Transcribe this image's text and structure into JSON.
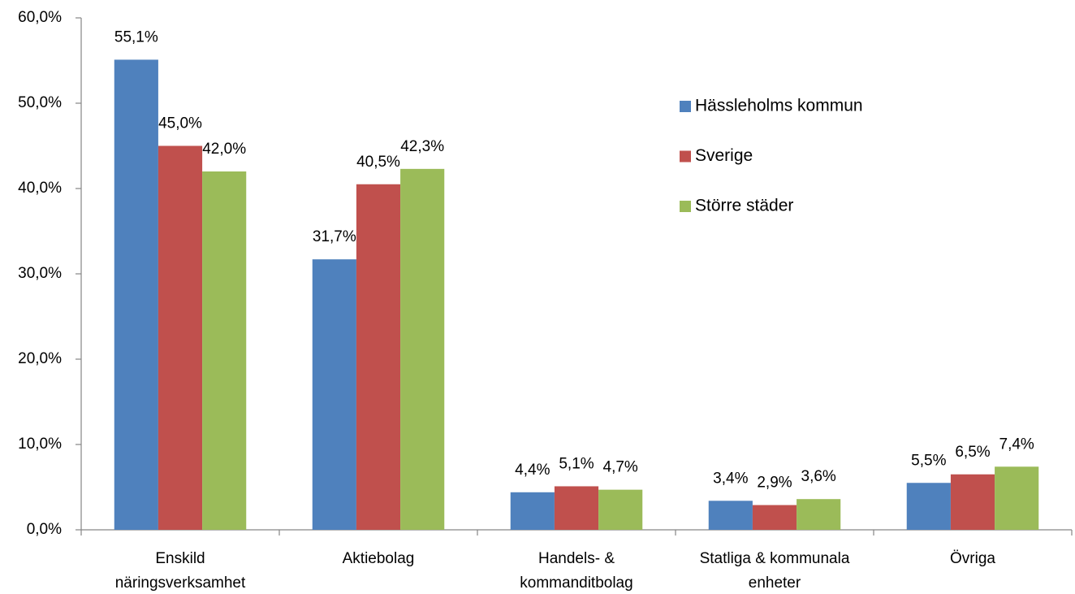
{
  "chart_data": {
    "type": "bar",
    "categories": [
      [
        "Enskild",
        "näringsverksamhet"
      ],
      [
        "Aktiebolag"
      ],
      [
        "Handels- &",
        "kommanditbolag"
      ],
      [
        "Statliga & kommunala",
        "enheter"
      ],
      [
        "Övriga"
      ]
    ],
    "series": [
      {
        "name": "Hässleholms kommun",
        "color": "#4f81bd",
        "values": [
          55.1,
          31.7,
          4.4,
          3.4,
          5.5
        ],
        "value_labels": [
          "55,1%",
          "31,7%",
          "4,4%",
          "3,4%",
          "5,5%"
        ]
      },
      {
        "name": "Sverige",
        "color": "#c0504d",
        "values": [
          45.0,
          40.5,
          5.1,
          2.9,
          6.5
        ],
        "value_labels": [
          "45,0%",
          "40,5%",
          "5,1%",
          "2,9%",
          "6,5%"
        ]
      },
      {
        "name": "Större städer",
        "color": "#9bbb59",
        "values": [
          42.0,
          42.3,
          4.7,
          3.6,
          7.4
        ],
        "value_labels": [
          "42,0%",
          "42,3%",
          "4,7%",
          "3,6%",
          "7,4%"
        ]
      }
    ],
    "ylim": [
      0,
      60
    ],
    "yticks": [
      {
        "value": 0,
        "label": "0,0%"
      },
      {
        "value": 10,
        "label": "10,0%"
      },
      {
        "value": 20,
        "label": "20,0%"
      },
      {
        "value": 30,
        "label": "30,0%"
      },
      {
        "value": 40,
        "label": "40,0%"
      },
      {
        "value": 50,
        "label": "50,0%"
      },
      {
        "value": 60,
        "label": "60,0%"
      }
    ],
    "legend": "right"
  }
}
